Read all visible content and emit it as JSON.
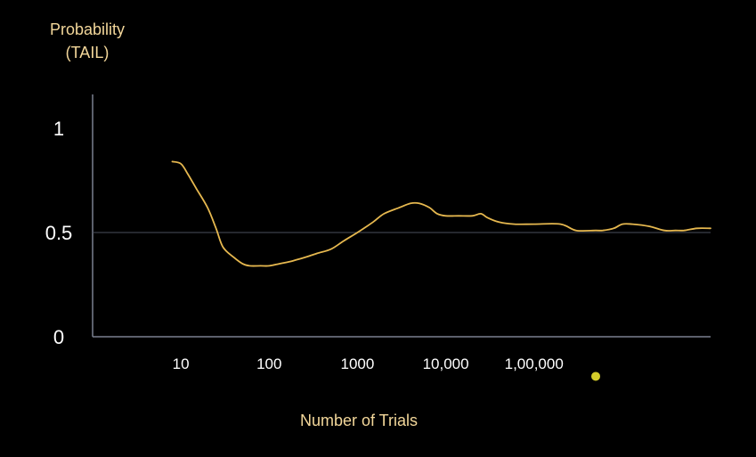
{
  "chart_data": {
    "type": "line",
    "title": "",
    "ylabel_lines": [
      "Probability",
      "(TAIL)"
    ],
    "xlabel": "Number of Trials",
    "x_scale": "log",
    "xlim": [
      1,
      10000000
    ],
    "ylim": [
      0,
      1.1
    ],
    "x_ticks": [
      {
        "value": 10,
        "label": "10"
      },
      {
        "value": 100,
        "label": "100"
      },
      {
        "value": 1000,
        "label": "1000"
      },
      {
        "value": 10000,
        "label": "10,000"
      },
      {
        "value": 100000,
        "label": "1,00,000"
      }
    ],
    "y_ticks": [
      {
        "value": 0,
        "label": "0"
      },
      {
        "value": 0.5,
        "label": "0.5"
      },
      {
        "value": 1,
        "label": "1"
      }
    ],
    "reference_line": {
      "y": 0.5
    },
    "grid": false,
    "colors": {
      "background": "#000000",
      "line": "#e6b84f",
      "axis": "#7a8090",
      "reference": "#4a505c",
      "label": "#f3d79a",
      "tick": "#ffffff",
      "marker": "#d4cc2a"
    },
    "marker": {
      "x": 500000,
      "y": -0.19
    },
    "series": [
      {
        "x": [
          8,
          10,
          12,
          15,
          20,
          25,
          30,
          40,
          50,
          60,
          80,
          100,
          130,
          170,
          250,
          350,
          500,
          700,
          1000,
          1500,
          2000,
          3000,
          4000,
          5000,
          6500,
          8000,
          10000,
          14000,
          20000,
          25000,
          30000,
          40000,
          60000,
          100000,
          200000,
          300000,
          500000,
          600000,
          800000,
          1000000,
          1300000,
          2000000,
          3000000,
          4000000,
          5000000,
          7000000,
          10000000
        ],
        "y": [
          0.84,
          0.83,
          0.78,
          0.71,
          0.62,
          0.52,
          0.43,
          0.38,
          0.35,
          0.34,
          0.34,
          0.34,
          0.35,
          0.36,
          0.38,
          0.4,
          0.42,
          0.46,
          0.5,
          0.55,
          0.59,
          0.62,
          0.64,
          0.64,
          0.62,
          0.59,
          0.58,
          0.58,
          0.58,
          0.59,
          0.57,
          0.55,
          0.54,
          0.54,
          0.54,
          0.51,
          0.51,
          0.51,
          0.52,
          0.54,
          0.54,
          0.53,
          0.51,
          0.51,
          0.51,
          0.52,
          0.52
        ]
      }
    ]
  }
}
